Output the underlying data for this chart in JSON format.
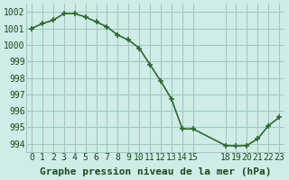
{
  "x": [
    0,
    1,
    2,
    3,
    4,
    5,
    6,
    7,
    8,
    9,
    10,
    11,
    12,
    13,
    14,
    15,
    18,
    19,
    20,
    21,
    22,
    23
  ],
  "y": [
    1001.0,
    1001.3,
    1001.5,
    1001.9,
    1001.9,
    1001.7,
    1001.4,
    1001.1,
    1000.6,
    1000.3,
    999.8,
    998.8,
    997.8,
    996.7,
    994.9,
    994.9,
    993.9,
    993.85,
    993.9,
    994.3,
    995.1,
    995.6
  ],
  "line_color": "#2d6a2d",
  "marker_color": "#2d6a2d",
  "bg_color": "#d0ece8",
  "grid_color": "#a0c8c0",
  "xlabel": "Graphe pression niveau de la mer (hPa)",
  "xticks": [
    0,
    1,
    2,
    3,
    4,
    5,
    6,
    7,
    8,
    9,
    10,
    11,
    12,
    13,
    14,
    15,
    18,
    19,
    20,
    21,
    22,
    23
  ],
  "xtick_labels": [
    "0",
    "1",
    "2",
    "3",
    "4",
    "5",
    "6",
    "7",
    "8",
    "9",
    "10",
    "11",
    "12",
    "13",
    "14",
    "15",
    "18",
    "19",
    "20",
    "21",
    "22",
    "23"
  ],
  "yticks": [
    994,
    995,
    996,
    997,
    998,
    999,
    1000,
    1001,
    1002
  ],
  "ylim": [
    993.5,
    1002.5
  ],
  "xlim": [
    -0.5,
    23.5
  ],
  "title_color": "#1a4a1a",
  "xlabel_fontsize": 8,
  "tick_fontsize": 7
}
